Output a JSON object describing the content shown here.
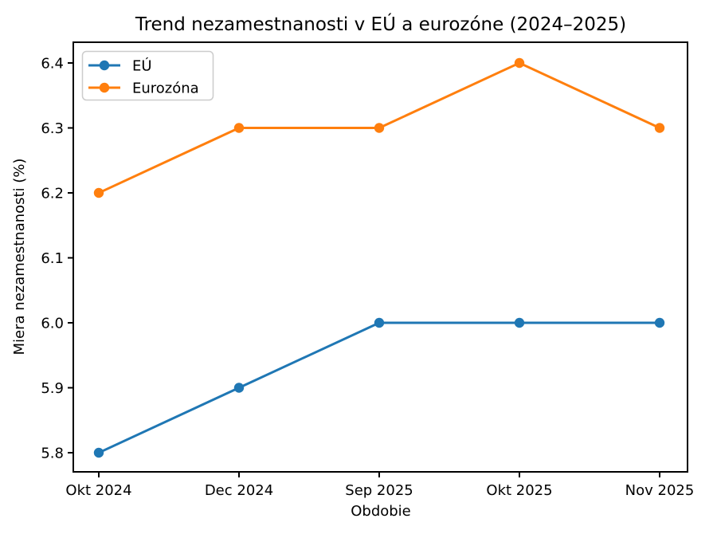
{
  "chart_data": {
    "type": "line",
    "title": "Trend nezamestnanosti v EÚ a eurozóne (2024–2025)",
    "xlabel": "Obdobie",
    "ylabel": "Miera nezamestnanosti (%)",
    "categories": [
      "Okt 2024",
      "Dec 2024",
      "Sep 2025",
      "Okt 2025",
      "Nov 2025"
    ],
    "series": [
      {
        "name": "EÚ",
        "values": [
          5.8,
          5.9,
          6.0,
          6.0,
          6.0
        ],
        "color": "#1f77b4",
        "marker": "circle"
      },
      {
        "name": "Eurozóna",
        "values": [
          6.2,
          6.3,
          6.3,
          6.4,
          6.3
        ],
        "color": "#ff7f0e",
        "marker": "circle"
      }
    ],
    "yticks": [
      5.8,
      5.9,
      6.0,
      6.1,
      6.2,
      6.3,
      6.4
    ],
    "ytick_labels": [
      "5.8",
      "5.9",
      "6.0",
      "6.1",
      "6.2",
      "6.3",
      "6.4"
    ],
    "ylim": [
      5.77,
      6.43
    ],
    "grid": false,
    "legend_position": "upper left",
    "text_color": "#000000",
    "spine_color": "#000000",
    "background_color": "#ffffff"
  }
}
